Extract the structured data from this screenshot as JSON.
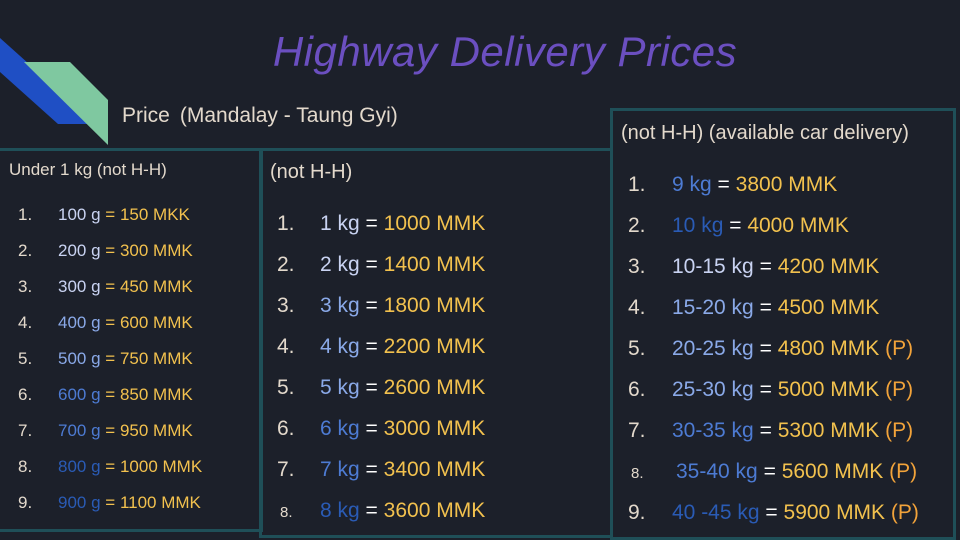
{
  "title": "Highway Delivery Prices",
  "subtitle": {
    "label": "Price",
    "route": "(Mandalay - Taung Gyi)"
  },
  "colors": {
    "background": "#1c202a",
    "title": "#6b4fc0",
    "price": "#f2c14e",
    "panel_border": "#1f4f58",
    "deco_blue": "#1f4fc4",
    "deco_green": "#7fc8a0"
  },
  "panel_under1kg": {
    "heading": "Under 1 kg (not H-H)",
    "items": [
      {
        "num": "1.",
        "weight": "100 g",
        "eq": "=",
        "price": "150 MKK"
      },
      {
        "num": "2.",
        "weight": "200 g",
        "eq": "=",
        "price": "300 MMK"
      },
      {
        "num": "3.",
        "weight": "300 g",
        "eq": "=",
        "price": "450 MMK"
      },
      {
        "num": "4.",
        "weight": "400 g",
        "eq": "=",
        "price": "600 MMK"
      },
      {
        "num": "5.",
        "weight": "500 g",
        "eq": "=",
        "price": "750 MMK"
      },
      {
        "num": "6.",
        "weight": "600 g",
        "eq": "=",
        "price": "850 MMK"
      },
      {
        "num": "7.",
        "weight": "700 g",
        "eq": "=",
        "price": "950 MMK"
      },
      {
        "num": "8.",
        "weight": "800 g",
        "eq": "=",
        "price": "1000 MMK"
      },
      {
        "num": "9.",
        "weight": "900 g",
        "eq": "=",
        "price": "1100 MMK"
      }
    ]
  },
  "panel_not_hh": {
    "heading": "(not H-H)",
    "items": [
      {
        "num": "1.",
        "weight": "1 kg",
        "eq": "=",
        "price": "1000 MMK"
      },
      {
        "num": "2.",
        "weight": "2 kg",
        "eq": "=",
        "price": "1400 MMK"
      },
      {
        "num": "3.",
        "weight": "3 kg",
        "eq": "=",
        "price": "1800 MMK"
      },
      {
        "num": "4.",
        "weight": "4 kg",
        "eq": "=",
        "price": "2200 MMK"
      },
      {
        "num": "5.",
        "weight": "5 kg",
        "eq": "=",
        "price": "2600 MMK"
      },
      {
        "num": "6.",
        "weight": "6 kg",
        "eq": "=",
        "price": "3000 MMK"
      },
      {
        "num": "7.",
        "weight": "7 kg",
        "eq": "=",
        "price": "3400 MMK"
      },
      {
        "num": "8.",
        "weight": "8 kg",
        "eq": "=",
        "price": "3600 MMK"
      }
    ]
  },
  "panel_car": {
    "heading": "(not H-H) (available car delivery)",
    "items": [
      {
        "num": "1.",
        "weight": "9 kg",
        "eq": "=",
        "price": "3800 MMK",
        "tag": ""
      },
      {
        "num": "2.",
        "weight": "10 kg",
        "eq": "=",
        "price": "4000 MMK",
        "tag": ""
      },
      {
        "num": "3.",
        "weight": "10-15 kg",
        "eq": "=",
        "price": "4200 MMK",
        "tag": ""
      },
      {
        "num": "4.",
        "weight": "15-20 kg",
        "eq": "=",
        "price": "4500 MMK",
        "tag": ""
      },
      {
        "num": "5.",
        "weight": "20-25 kg",
        "eq": "=",
        "price": "4800 MMK",
        "tag": "(P)"
      },
      {
        "num": "6.",
        "weight": "25-30 kg",
        "eq": "=",
        "price": "5000 MMK",
        "tag": "(P)"
      },
      {
        "num": "7.",
        "weight": "30-35 kg",
        "eq": "=",
        "price": "5300 MMK",
        "tag": "(P)"
      },
      {
        "num": "8.",
        "weight": "35-40 kg",
        "eq": "=",
        "price": "5600 MMK",
        "tag": "(P)"
      },
      {
        "num": "9.",
        "weight": "40 -45 kg",
        "eq": "=",
        "price": "5900 MMK",
        "tag": "(P)"
      }
    ]
  }
}
